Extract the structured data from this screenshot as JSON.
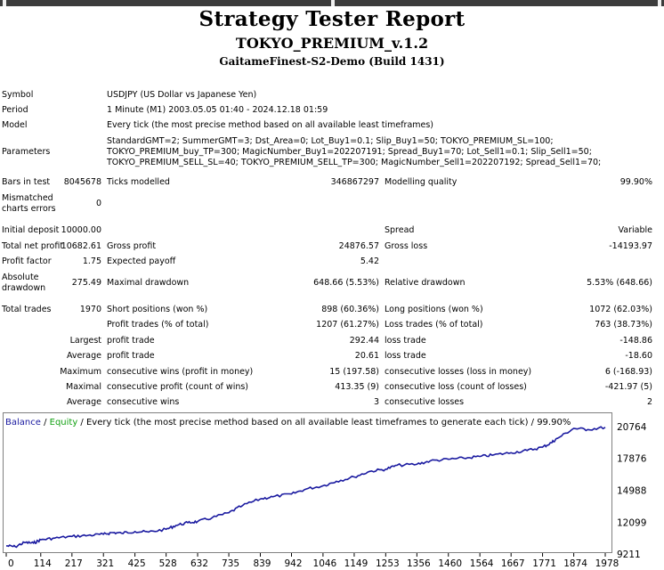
{
  "report": {
    "title": "Strategy Tester Report",
    "ea_name": "TOKYO_PREMIUM_v.1.2",
    "server": "GaitameFinest-S2-Demo (Build 1431)"
  },
  "settings": {
    "symbol_label": "Symbol",
    "symbol_value": "USDJPY (US Dollar vs Japanese Yen)",
    "period_label": "Period",
    "period_value": "1 Minute (M1) 2003.05.05 01:40 - 2024.12.18 01:59",
    "model_label": "Model",
    "model_value": "Every tick (the most precise method based on all available least timeframes)",
    "parameters_label": "Parameters",
    "parameters_lines": [
      "StandardGMT=2; SummerGMT=3; Dst_Area=0; Lot_Buy1=0.1; Slip_Buy1=50; TOKYO_PREMIUM_SL=100;",
      "TOKYO_PREMIUM_buy_TP=300; MagicNumber_Buy1=202207191; Spread_Buy1=70; Lot_Sell1=0.1; Slip_Sell1=50;",
      "TOKYO_PREMIUM_SELL_SL=40; TOKYO_PREMIUM_SELL_TP=300; MagicNumber_Sell1=202207192; Spread_Sell1=70;"
    ]
  },
  "stats": {
    "bars_label": "Bars in test",
    "bars_value": "8045678",
    "ticks_label": "Ticks modelled",
    "ticks_value": "346867297",
    "quality_label": "Modelling quality",
    "quality_value": "99.90%",
    "mismatch_label_1": "Mismatched",
    "mismatch_label_2": "charts errors",
    "mismatch_value": "0",
    "deposit_label": "Initial deposit",
    "deposit_value": "10000.00",
    "spread_label": "Spread",
    "spread_value": "Variable",
    "net_label": "Total net profit",
    "net_value": "10682.61",
    "gross_profit_label": "Gross profit",
    "gross_profit_value": "24876.57",
    "gross_loss_label": "Gross loss",
    "gross_loss_value": "-14193.97",
    "pf_label": "Profit factor",
    "pf_value": "1.75",
    "payoff_label": "Expected payoff",
    "payoff_value": "5.42",
    "abs_dd_label_1": "Absolute",
    "abs_dd_label_2": "drawdown",
    "abs_dd_value": "275.49",
    "max_dd_label": "Maximal drawdown",
    "max_dd_value": "648.66 (5.53%)",
    "rel_dd_label": "Relative drawdown",
    "rel_dd_value": "5.53% (648.66)",
    "trades_label": "Total trades",
    "trades_value": "1970",
    "short_label": "Short positions (won %)",
    "short_value": "898 (60.36%)",
    "long_label": "Long positions (won %)",
    "long_value": "1072 (62.03%)",
    "profit_trades_label": "Profit trades (% of total)",
    "profit_trades_value": "1207 (61.27%)",
    "loss_trades_label": "Loss trades (% of total)",
    "loss_trades_value": "763 (38.73%)",
    "largest_label": "Largest",
    "largest_profit_label": "profit trade",
    "largest_profit_value": "292.44",
    "largest_loss_label": "loss trade",
    "largest_loss_value": "-148.86",
    "average_label": "Average",
    "avg_profit_label": "profit trade",
    "avg_profit_value": "20.61",
    "avg_loss_label": "loss trade",
    "avg_loss_value": "-18.60",
    "maximum_label": "Maximum",
    "max_wins_label": "consecutive wins (profit in money)",
    "max_wins_value": "15 (197.58)",
    "max_losses_label": "consecutive losses (loss in money)",
    "max_losses_value": "6 (-168.93)",
    "maximal_label": "Maximal",
    "maximal_profit_label": "consecutive profit (count of wins)",
    "maximal_profit_value": "413.35 (9)",
    "maximal_loss_label": "consecutive loss (count of losses)",
    "maximal_loss_value": "-421.97 (5)",
    "average2_label": "Average",
    "avg_wins_label": "consecutive wins",
    "avg_wins_value": "3",
    "avg_losses_label": "consecutive losses",
    "avg_losses_value": "2"
  },
  "chart_data": {
    "type": "line",
    "legend": {
      "balance": "Balance",
      "sep1": " / ",
      "equity": "Equity",
      "rest": " / Every tick (the most precise method based on all available least timeframes to generate each tick) / 99.90%"
    },
    "colors": {
      "balance": "#1a1aa0",
      "equity": "#11a011",
      "axis": "#000000",
      "border": "#808080"
    },
    "yticks": [
      20764,
      17876,
      14988,
      12099,
      9211
    ],
    "xticks": [
      0,
      114,
      217,
      321,
      425,
      528,
      632,
      735,
      839,
      942,
      1046,
      1149,
      1253,
      1356,
      1460,
      1564,
      1667,
      1771,
      1874,
      1978
    ],
    "xlim": [
      0,
      1978
    ],
    "ylim": [
      9211,
      20764
    ],
    "series": [
      {
        "name": "Balance",
        "x": [
          0,
          30,
          60,
          90,
          114,
          160,
          217,
          270,
          321,
          350,
          380,
          425,
          470,
          528,
          560,
          600,
          632,
          680,
          735,
          780,
          839,
          880,
          942,
          990,
          1046,
          1090,
          1149,
          1200,
          1253,
          1290,
          1356,
          1400,
          1460,
          1510,
          1564,
          1610,
          1667,
          1720,
          1771,
          1800,
          1820,
          1874,
          1920,
          1978
        ],
        "values": [
          9950,
          9870,
          10250,
          10200,
          10500,
          10650,
          10800,
          10900,
          11000,
          11150,
          11100,
          11250,
          11200,
          11450,
          11800,
          12050,
          12150,
          12500,
          12950,
          13600,
          14200,
          14400,
          14650,
          15100,
          15400,
          15800,
          16200,
          16700,
          16900,
          17250,
          17350,
          17650,
          17800,
          17900,
          18050,
          18200,
          18400,
          18600,
          18900,
          19300,
          19700,
          20600,
          20500,
          20700
        ]
      }
    ]
  }
}
